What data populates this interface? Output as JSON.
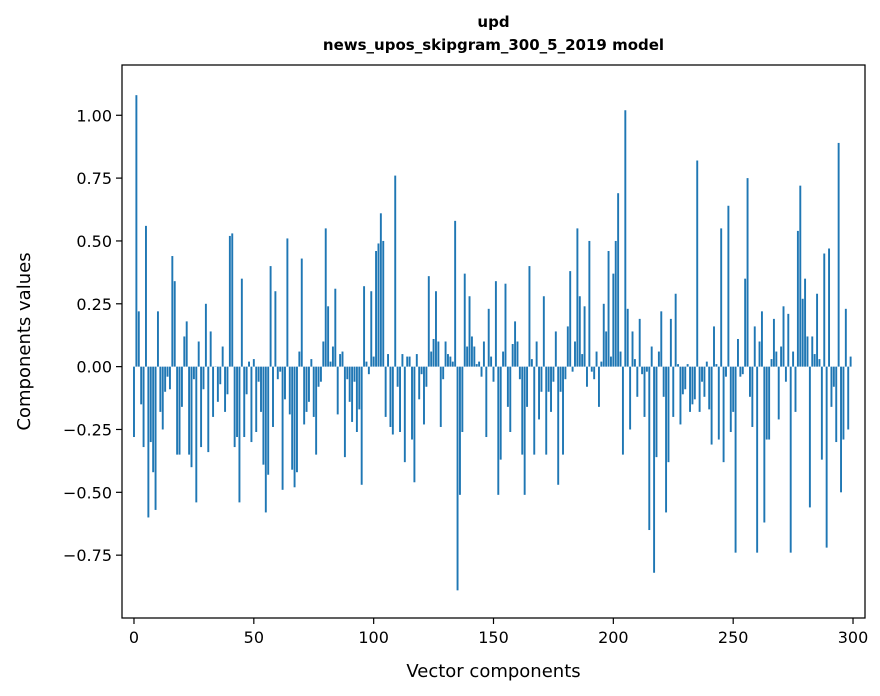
{
  "chart_data": {
    "type": "bar",
    "title": "upd",
    "subtitle": "news_upos_skipgram_300_5_2019 model",
    "xlabel": "Vector components",
    "ylabel": "Components values",
    "xlim": [
      -5,
      305
    ],
    "ylim": [
      -1.0,
      1.2
    ],
    "xticks": [
      0,
      50,
      100,
      150,
      200,
      250,
      300
    ],
    "xtick_labels": [
      "0",
      "50",
      "100",
      "150",
      "200",
      "250",
      "300"
    ],
    "yticks": [
      -0.75,
      -0.5,
      -0.25,
      0.0,
      0.25,
      0.5,
      0.75,
      1.0
    ],
    "ytick_labels": [
      "−0.75",
      "−0.50",
      "−0.25",
      "0.00",
      "0.25",
      "0.50",
      "0.75",
      "1.00"
    ],
    "grid": false,
    "bar_color": "#1f77b4",
    "x": [
      0,
      1,
      2,
      3,
      4,
      5,
      6,
      7,
      8,
      9,
      10,
      11,
      12,
      13,
      14,
      15,
      16,
      17,
      18,
      19,
      20,
      21,
      22,
      23,
      24,
      25,
      26,
      27,
      28,
      29,
      30,
      31,
      32,
      33,
      34,
      35,
      36,
      37,
      38,
      39,
      40,
      41,
      42,
      43,
      44,
      45,
      46,
      47,
      48,
      49,
      50,
      51,
      52,
      53,
      54,
      55,
      56,
      57,
      58,
      59,
      60,
      61,
      62,
      63,
      64,
      65,
      66,
      67,
      68,
      69,
      70,
      71,
      72,
      73,
      74,
      75,
      76,
      77,
      78,
      79,
      80,
      81,
      82,
      83,
      84,
      85,
      86,
      87,
      88,
      89,
      90,
      91,
      92,
      93,
      94,
      95,
      96,
      97,
      98,
      99,
      100,
      101,
      102,
      103,
      104,
      105,
      106,
      107,
      108,
      109,
      110,
      111,
      112,
      113,
      114,
      115,
      116,
      117,
      118,
      119,
      120,
      121,
      122,
      123,
      124,
      125,
      126,
      127,
      128,
      129,
      130,
      131,
      132,
      133,
      134,
      135,
      136,
      137,
      138,
      139,
      140,
      141,
      142,
      143,
      144,
      145,
      146,
      147,
      148,
      149,
      150,
      151,
      152,
      153,
      154,
      155,
      156,
      157,
      158,
      159,
      160,
      161,
      162,
      163,
      164,
      165,
      166,
      167,
      168,
      169,
      170,
      171,
      172,
      173,
      174,
      175,
      176,
      177,
      178,
      179,
      180,
      181,
      182,
      183,
      184,
      185,
      186,
      187,
      188,
      189,
      190,
      191,
      192,
      193,
      194,
      195,
      196,
      197,
      198,
      199,
      200,
      201,
      202,
      203,
      204,
      205,
      206,
      207,
      208,
      209,
      210,
      211,
      212,
      213,
      214,
      215,
      216,
      217,
      218,
      219,
      220,
      221,
      222,
      223,
      224,
      225,
      226,
      227,
      228,
      229,
      230,
      231,
      232,
      233,
      234,
      235,
      236,
      237,
      238,
      239,
      240,
      241,
      242,
      243,
      244,
      245,
      246,
      247,
      248,
      249,
      250,
      251,
      252,
      253,
      254,
      255,
      256,
      257,
      258,
      259,
      260,
      261,
      262,
      263,
      264,
      265,
      266,
      267,
      268,
      269,
      270,
      271,
      272,
      273,
      274,
      275,
      276,
      277,
      278,
      279,
      280,
      281,
      282,
      283,
      284,
      285,
      286,
      287,
      288,
      289,
      290,
      291,
      292,
      293,
      294,
      295,
      296,
      297,
      298,
      299
    ],
    "values": [
      -0.28,
      1.08,
      0.22,
      -0.15,
      -0.32,
      0.56,
      -0.6,
      -0.3,
      -0.42,
      -0.57,
      0.22,
      -0.18,
      -0.25,
      -0.1,
      -0.04,
      -0.09,
      0.44,
      0.34,
      -0.35,
      -0.35,
      -0.16,
      0.12,
      0.18,
      -0.35,
      -0.4,
      -0.05,
      -0.54,
      0.1,
      -0.32,
      -0.09,
      0.25,
      -0.34,
      0.14,
      -0.2,
      0.0,
      -0.14,
      -0.07,
      0.08,
      -0.18,
      -0.11,
      0.52,
      0.53,
      -0.32,
      -0.28,
      -0.54,
      0.35,
      -0.28,
      -0.11,
      0.02,
      -0.3,
      0.03,
      -0.26,
      -0.06,
      -0.18,
      -0.39,
      -0.58,
      -0.43,
      0.4,
      -0.24,
      0.3,
      -0.05,
      -0.02,
      -0.49,
      -0.13,
      0.51,
      -0.19,
      -0.41,
      -0.48,
      -0.42,
      0.06,
      0.43,
      -0.23,
      -0.18,
      -0.14,
      0.03,
      -0.2,
      -0.35,
      -0.08,
      -0.06,
      0.1,
      0.55,
      0.24,
      0.02,
      0.08,
      0.31,
      -0.19,
      0.05,
      0.06,
      -0.36,
      -0.05,
      -0.14,
      -0.22,
      -0.06,
      -0.26,
      -0.17,
      -0.47,
      0.32,
      0.02,
      -0.03,
      0.3,
      0.04,
      0.46,
      0.49,
      0.61,
      0.5,
      -0.2,
      0.05,
      -0.24,
      -0.27,
      0.76,
      -0.08,
      -0.26,
      0.05,
      -0.38,
      0.04,
      0.04,
      -0.29,
      -0.46,
      0.05,
      -0.13,
      -0.03,
      -0.23,
      -0.08,
      0.36,
      0.06,
      0.11,
      0.3,
      0.1,
      -0.24,
      -0.05,
      0.1,
      0.05,
      0.04,
      0.02,
      0.58,
      -0.89,
      -0.51,
      -0.26,
      0.37,
      0.08,
      0.28,
      0.12,
      0.08,
      0.01,
      0.02,
      -0.04,
      0.1,
      -0.28,
      0.23,
      0.04,
      -0.06,
      0.34,
      -0.51,
      -0.37,
      0.06,
      0.33,
      -0.16,
      -0.26,
      0.09,
      0.18,
      0.1,
      -0.05,
      -0.35,
      -0.51,
      -0.16,
      0.4,
      0.03,
      -0.35,
      0.1,
      -0.21,
      -0.1,
      0.28,
      -0.35,
      -0.1,
      -0.18,
      -0.06,
      0.14,
      -0.47,
      -0.1,
      -0.35,
      -0.05,
      0.16,
      0.38,
      -0.02,
      0.1,
      0.55,
      0.28,
      0.05,
      0.24,
      -0.08,
      0.5,
      -0.02,
      -0.05,
      0.06,
      -0.16,
      0.02,
      0.25,
      0.14,
      0.46,
      0.04,
      0.37,
      0.5,
      0.69,
      0.06,
      -0.35,
      1.02,
      0.23,
      -0.25,
      0.14,
      0.03,
      -0.12,
      0.19,
      -0.03,
      -0.2,
      -0.02,
      -0.65,
      0.08,
      -0.82,
      -0.36,
      0.06,
      0.22,
      -0.12,
      -0.58,
      -0.38,
      0.19,
      -0.2,
      0.29,
      0.01,
      -0.23,
      -0.11,
      -0.09,
      0.01,
      -0.18,
      -0.15,
      -0.13,
      0.82,
      -0.18,
      -0.06,
      -0.12,
      0.02,
      -0.17,
      -0.31,
      0.16,
      0.01,
      -0.29,
      0.55,
      -0.38,
      -0.04,
      0.64,
      -0.26,
      -0.18,
      -0.74,
      0.11,
      -0.04,
      -0.03,
      0.35,
      0.75,
      -0.12,
      -0.24,
      0.16,
      -0.74,
      0.1,
      0.22,
      -0.62,
      -0.29,
      -0.29,
      0.03,
      0.19,
      0.06,
      -0.21,
      0.08,
      0.24,
      -0.06,
      0.21,
      -0.74,
      0.06,
      -0.18,
      0.54,
      0.72,
      0.27,
      0.35,
      0.12,
      -0.56,
      0.12,
      0.05,
      0.29,
      0.03,
      -0.37,
      0.45,
      -0.72,
      0.47,
      -0.16,
      -0.08,
      -0.3,
      0.89,
      -0.5,
      -0.29,
      0.23,
      -0.25,
      0.04
    ]
  }
}
